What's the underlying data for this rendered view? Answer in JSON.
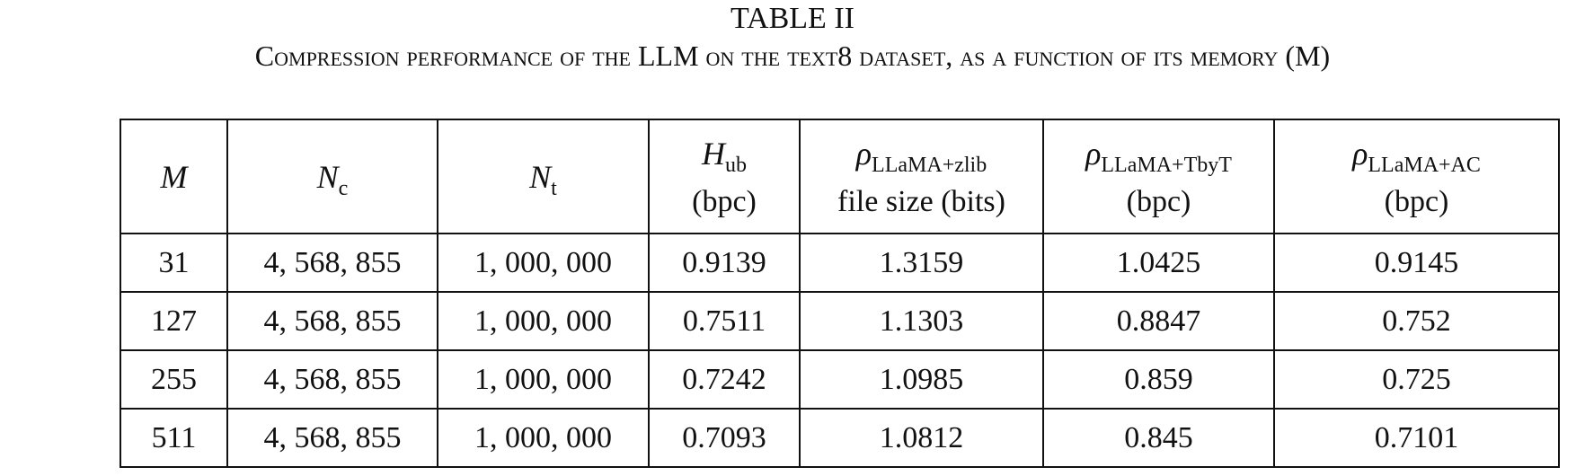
{
  "caption": {
    "label": "TABLE II",
    "text": "Compression performance of the LLM on the text8 dataset, as a function of its memory (M)"
  },
  "table": {
    "header": [
      {
        "symbol": "M"
      },
      {
        "symbol": "N",
        "sub": "c"
      },
      {
        "symbol": "N",
        "sub": "t"
      },
      {
        "symbol": "H",
        "sub": "ub",
        "unit": "(bpc)"
      },
      {
        "symbol": "ρ",
        "sub": "LLaMA+zlib",
        "unit": "file size (bits)"
      },
      {
        "symbol": "ρ",
        "sub": "LLaMA+TbyT",
        "unit": "(bpc)"
      },
      {
        "symbol": "ρ",
        "sub": "LLaMA+AC",
        "unit": "(bpc)"
      }
    ],
    "rows": [
      [
        "31",
        "4, 568, 855",
        "1, 000, 000",
        "0.9139",
        "1.3159",
        "1.0425",
        "0.9145"
      ],
      [
        "127",
        "4, 568, 855",
        "1, 000, 000",
        "0.7511",
        "1.1303",
        "0.8847",
        "0.752"
      ],
      [
        "255",
        "4, 568, 855",
        "1, 000, 000",
        "0.7242",
        "1.0985",
        "0.859",
        "0.725"
      ],
      [
        "511",
        "4, 568, 855",
        "1, 000, 000",
        "0.7093",
        "1.0812",
        "0.845",
        "0.7101"
      ]
    ]
  }
}
